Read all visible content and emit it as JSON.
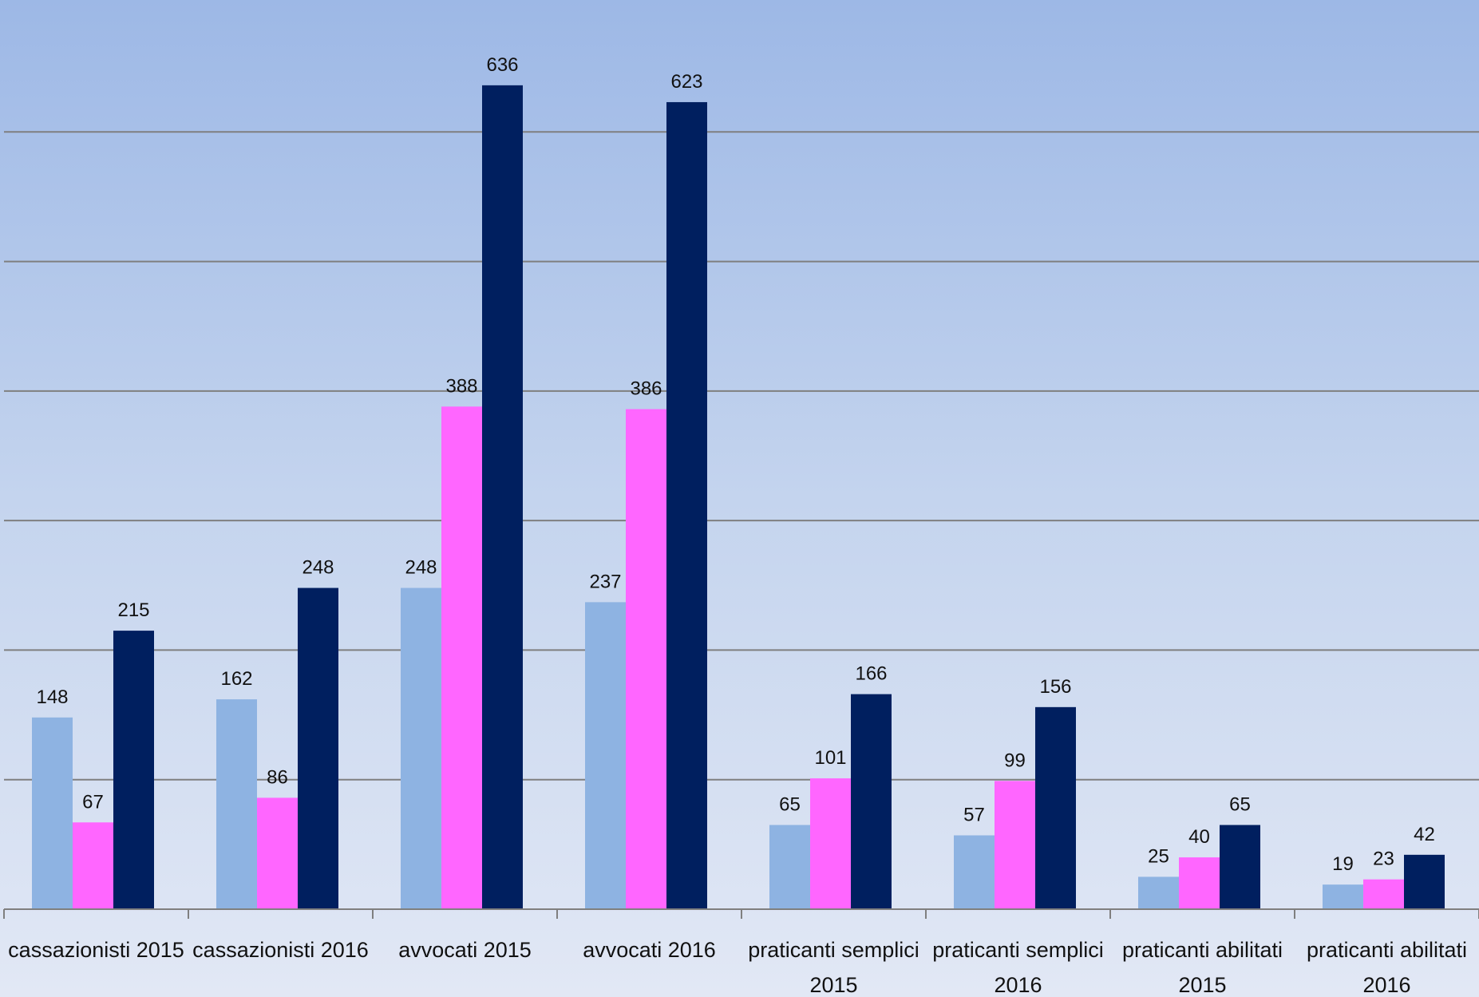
{
  "colors": {
    "series": [
      "#8eb3e2",
      "#ff66ff",
      "#001f5f"
    ],
    "grid": "#7f7f7f",
    "axis": "#7f7f7f"
  },
  "chart_data": {
    "type": "bar",
    "categories": [
      [
        "cassazionisti 2015"
      ],
      [
        "cassazionisti 2016"
      ],
      [
        "avvocati 2015"
      ],
      [
        "avvocati 2016"
      ],
      [
        "praticanti semplici",
        "2015"
      ],
      [
        "praticanti semplici",
        "2016"
      ],
      [
        "praticanti abilitati",
        "2015"
      ],
      [
        "praticanti abilitati",
        "2016"
      ]
    ],
    "series": [
      {
        "values": [
          148,
          162,
          248,
          237,
          65,
          57,
          25,
          19
        ]
      },
      {
        "values": [
          67,
          86,
          388,
          386,
          101,
          99,
          40,
          23
        ]
      },
      {
        "values": [
          215,
          248,
          636,
          623,
          166,
          156,
          65,
          42
        ]
      }
    ],
    "title": "",
    "xlabel": "",
    "ylabel": "",
    "ylim": [
      0,
      700
    ],
    "grid": true,
    "gridlines": [
      100,
      200,
      300,
      400,
      500,
      600
    ],
    "legend": "none"
  }
}
